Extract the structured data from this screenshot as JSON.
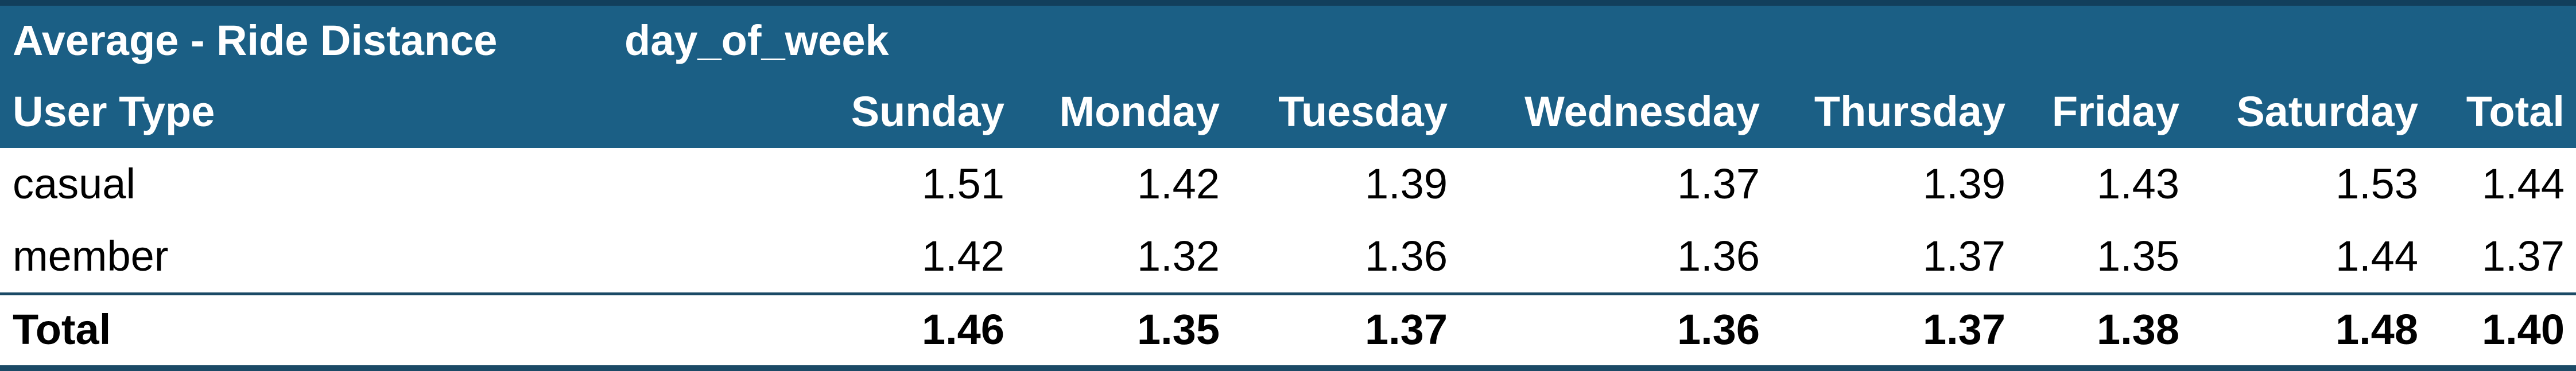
{
  "pivot": {
    "value_field": "Average - Ride Distance",
    "column_field": "day_of_week",
    "row_field": "User Type",
    "columns": [
      "Sunday",
      "Monday",
      "Tuesday",
      "Wednesday",
      "Thursday",
      "Friday",
      "Saturday",
      "Total"
    ],
    "rows": [
      {
        "label": "casual",
        "values": [
          "1.51",
          "1.42",
          "1.39",
          "1.37",
          "1.39",
          "1.43",
          "1.53",
          "1.44"
        ]
      },
      {
        "label": "member",
        "values": [
          "1.42",
          "1.32",
          "1.36",
          "1.36",
          "1.37",
          "1.35",
          "1.44",
          "1.37"
        ]
      }
    ],
    "total": {
      "label": "Total",
      "values": [
        "1.46",
        "1.35",
        "1.37",
        "1.36",
        "1.37",
        "1.38",
        "1.48",
        "1.40"
      ]
    }
  },
  "colors": {
    "header_background": "#1b5f85",
    "header_text": "#ffffff",
    "border": "#1b4a66"
  }
}
